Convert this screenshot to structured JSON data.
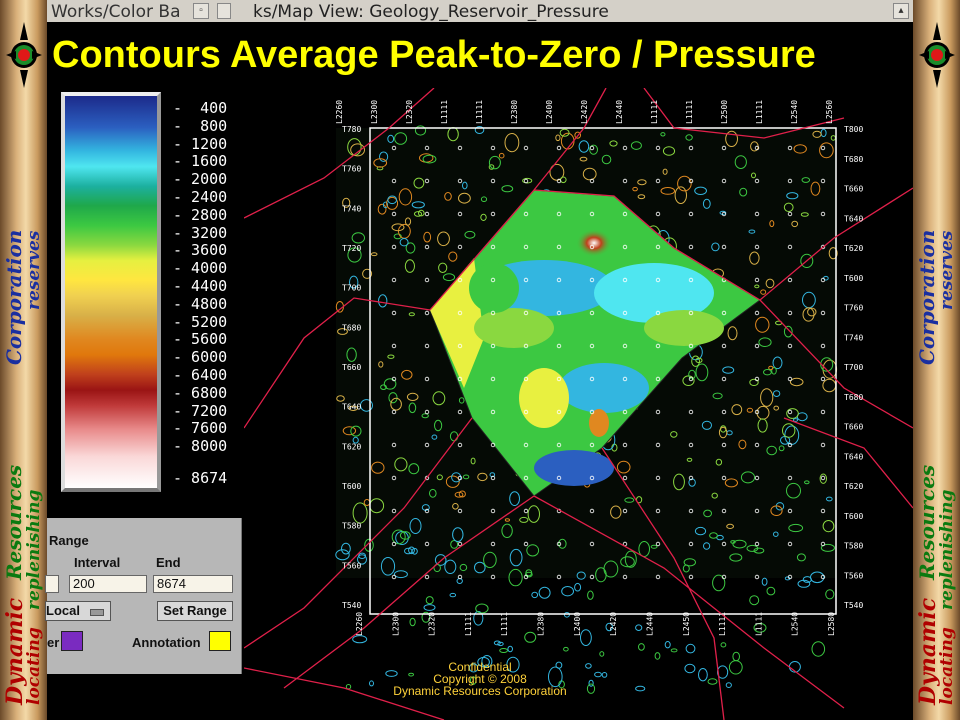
{
  "window": {
    "title_left": "Works/Color Ba",
    "title_main": "ks/Map View: Geology_Reservoir_Pressure"
  },
  "banner": {
    "title": "Contours Average Peak-to-Zero / Pressure"
  },
  "side": {
    "word1": "Dynamic",
    "word2": "Resources",
    "word3": "Corporation",
    "tagline1": "locating",
    "tagline2": "replenishing",
    "tagline3": "reserves"
  },
  "colorbar": {
    "ticks": [
      "400",
      "800",
      "1200",
      "1600",
      "2000",
      "2400",
      "2800",
      "3200",
      "3600",
      "4000",
      "4400",
      "4800",
      "5200",
      "5600",
      "6000",
      "6400",
      "6800",
      "7200",
      "7600",
      "8000",
      "8674"
    ]
  },
  "controls": {
    "range_label": "Range",
    "interval_label": "Interval",
    "end_label": "End",
    "interval_value": "200",
    "end_value": "8674",
    "mode_value": "Local",
    "set_range_button": "Set Range",
    "border_label": "er",
    "annotation_label": "Annotation",
    "border_color": "#7a2bc0",
    "annotation_color": "#ffff00"
  },
  "map": {
    "top_labels": [
      "L2260",
      "L2300",
      "L2320",
      "L1111",
      "L1111",
      "L2380",
      "L2400",
      "L2420",
      "L2440",
      "L1111",
      "L1111",
      "L2500",
      "L1111",
      "L2540",
      "L2560"
    ],
    "bottom_labels": [
      "L2260",
      "L2300",
      "L2320",
      "L1111",
      "L1111",
      "L2380",
      "L2400",
      "L2420",
      "L2440",
      "L2450",
      "L1111",
      "L1111",
      "L2540",
      "L2580"
    ],
    "left_labels": [
      "T780",
      "T760",
      "T740",
      "T720",
      "T700",
      "T680",
      "T660",
      "T640",
      "T620",
      "T600",
      "T580",
      "T560",
      "T540"
    ],
    "right_labels": [
      "T800",
      "T680",
      "T660",
      "T640",
      "T620",
      "T600",
      "T760",
      "T740",
      "T700",
      "T680",
      "T660",
      "T640",
      "T620",
      "T600",
      "T580",
      "T560",
      "T540"
    ]
  },
  "footer": {
    "line1": "Confidential",
    "line2": "Copyright © 2008",
    "line3": "Dynamic Resources Corporation"
  },
  "colors": {
    "banner_text": "#ffff00",
    "fault_lines": "#e0204a",
    "footer_text": "#ffd23a"
  }
}
